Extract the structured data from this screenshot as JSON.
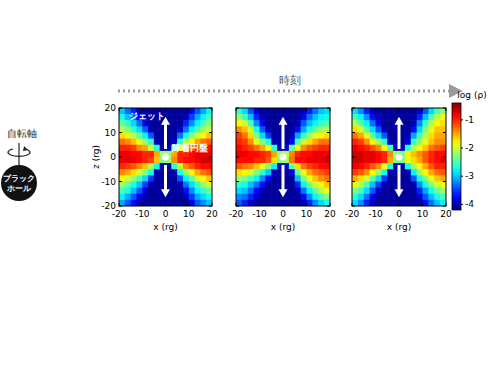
{
  "header": {
    "time_label": "時刻",
    "spin_axis": "自転軸",
    "black_hole": [
      "ブラック",
      "ホール"
    ]
  },
  "colorbar": {
    "label": "log (ρ)",
    "range": [
      -4.2,
      -0.4
    ],
    "ticks": [
      -1,
      -2,
      -3,
      -4
    ]
  },
  "chart_data": [
    {
      "type": "heatmap",
      "xlabel": "x (rg)",
      "ylabel": "z (rg)",
      "xlim": [
        -20,
        20
      ],
      "ylim": [
        -20,
        20
      ],
      "xticks": [
        -20,
        -10,
        0,
        10,
        20
      ],
      "yticks": [
        -20,
        -10,
        0,
        10,
        20
      ],
      "annotations": [
        "ジェット",
        "降着円盤"
      ],
      "cells": [
        [
          -3.0,
          -3.3,
          -3.6,
          -4.0,
          -4.1,
          -4.1,
          -4.1,
          -4.1,
          -4.1,
          -4.1,
          -4.1,
          -4.1,
          -3.8,
          -3.4,
          -3.1,
          -2.8
        ],
        [
          -2.7,
          -3.0,
          -3.3,
          -3.7,
          -4.0,
          -4.1,
          -4.1,
          -4.1,
          -4.1,
          -4.1,
          -4.1,
          -4.0,
          -3.5,
          -3.1,
          -2.8,
          -2.5
        ],
        [
          -2.4,
          -2.6,
          -2.9,
          -3.3,
          -3.8,
          -4.1,
          -4.1,
          -4.1,
          -4.1,
          -4.1,
          -4.1,
          -3.6,
          -3.2,
          -2.8,
          -2.5,
          -2.3
        ],
        [
          -2.1,
          -2.3,
          -2.6,
          -2.9,
          -3.4,
          -4.0,
          -4.1,
          -4.1,
          -4.1,
          -4.1,
          -3.9,
          -3.3,
          -2.8,
          -2.5,
          -2.2,
          -2.0
        ],
        [
          -1.7,
          -1.9,
          -2.1,
          -2.4,
          -2.8,
          -3.4,
          -4.1,
          -4.1,
          -4.1,
          -4.1,
          -3.3,
          -2.7,
          -2.3,
          -2.0,
          -1.8,
          -1.6
        ],
        [
          -1.3,
          -1.4,
          -1.6,
          -1.9,
          -2.2,
          -2.6,
          -4.0,
          -4.1,
          -4.1,
          -3.9,
          -2.6,
          -2.1,
          -1.8,
          -1.5,
          -1.3,
          -1.2
        ],
        [
          -1.0,
          -1.0,
          -1.1,
          -1.4,
          -1.5,
          -2.0,
          -2.6,
          -4.0,
          -4.0,
          -2.5,
          -1.9,
          -1.5,
          -1.3,
          -1.1,
          -1.0,
          -0.9
        ],
        [
          -0.8,
          -0.8,
          -0.9,
          -0.9,
          -1.0,
          -1.0,
          -1.5,
          -2.2,
          -2.2,
          -1.5,
          -1.0,
          -1.0,
          -0.9,
          -0.8,
          -0.8,
          -0.8
        ],
        [
          -0.8,
          -0.8,
          -0.8,
          -0.9,
          -1.0,
          -1.1,
          -1.6,
          -2.3,
          -2.2,
          -1.4,
          -1.0,
          -0.9,
          -0.9,
          -0.8,
          -0.7,
          -0.7
        ],
        [
          -1.0,
          -1.1,
          -1.2,
          -1.4,
          -1.6,
          -2.1,
          -2.7,
          -4.0,
          -4.0,
          -2.6,
          -2.0,
          -1.4,
          -1.2,
          -1.0,
          -0.9,
          -0.9
        ],
        [
          -1.4,
          -1.5,
          -1.7,
          -2.0,
          -2.3,
          -2.7,
          -4.0,
          -4.1,
          -4.1,
          -4.0,
          -2.7,
          -2.2,
          -1.8,
          -1.5,
          -1.3,
          -1.2
        ],
        [
          -1.8,
          -2.0,
          -2.2,
          -2.5,
          -2.9,
          -3.5,
          -4.1,
          -4.1,
          -4.1,
          -4.1,
          -3.4,
          -2.8,
          -2.4,
          -2.0,
          -1.8,
          -1.6
        ],
        [
          -2.2,
          -2.4,
          -2.7,
          -3.0,
          -3.5,
          -4.0,
          -4.1,
          -4.1,
          -4.1,
          -4.1,
          -4.0,
          -3.3,
          -2.9,
          -2.5,
          -2.2,
          -2.0
        ],
        [
          -2.5,
          -2.7,
          -3.0,
          -3.4,
          -3.9,
          -4.1,
          -4.1,
          -4.1,
          -4.1,
          -4.1,
          -4.1,
          -3.7,
          -3.2,
          -2.8,
          -2.6,
          -2.4
        ],
        [
          -2.8,
          -3.1,
          -3.4,
          -3.8,
          -4.0,
          -4.1,
          -4.1,
          -4.1,
          -4.1,
          -4.1,
          -4.1,
          -4.0,
          -3.5,
          -3.1,
          -2.9,
          -2.7
        ],
        [
          -3.1,
          -3.4,
          -3.7,
          -4.0,
          -4.1,
          -4.1,
          -4.1,
          -4.1,
          -4.1,
          -4.1,
          -4.1,
          -4.1,
          -3.8,
          -3.4,
          -3.2,
          -3.0
        ]
      ]
    },
    {
      "type": "heatmap",
      "xlabel": "x (rg)",
      "xlim": [
        -20,
        20
      ],
      "ylim": [
        -20,
        20
      ],
      "xticks": [
        -20,
        -10,
        0,
        10,
        20
      ],
      "yticks": [
        -20,
        -10,
        0,
        10,
        20
      ],
      "tick_labels": "x",
      "cells": [
        [
          -2.6,
          -2.9,
          -3.4,
          -3.9,
          -4.1,
          -4.1,
          -4.1,
          -4.1,
          -4.1,
          -4.1,
          -4.1,
          -4.0,
          -3.6,
          -3.3,
          -3.0,
          -2.9
        ],
        [
          -2.2,
          -2.5,
          -3.0,
          -3.6,
          -4.0,
          -4.1,
          -4.1,
          -4.1,
          -4.1,
          -4.1,
          -4.1,
          -3.8,
          -3.3,
          -3.0,
          -2.8,
          -2.7
        ],
        [
          -1.8,
          -2.0,
          -2.5,
          -3.2,
          -3.8,
          -4.1,
          -4.1,
          -4.1,
          -4.1,
          -4.1,
          -4.0,
          -3.4,
          -3.0,
          -2.8,
          -2.6,
          -2.5
        ],
        [
          -1.4,
          -1.6,
          -2.0,
          -2.7,
          -3.4,
          -4.0,
          -4.1,
          -4.1,
          -4.1,
          -4.1,
          -3.7,
          -3.1,
          -2.7,
          -2.4,
          -2.2,
          -2.1
        ],
        [
          -1.1,
          -1.3,
          -1.7,
          -2.3,
          -2.9,
          -3.5,
          -4.1,
          -4.1,
          -4.1,
          -4.0,
          -3.1,
          -2.6,
          -2.2,
          -1.9,
          -1.8,
          -1.7
        ],
        [
          -1.0,
          -1.1,
          -1.4,
          -1.9,
          -2.3,
          -2.7,
          -4.0,
          -4.1,
          -4.1,
          -3.7,
          -2.5,
          -2.0,
          -1.7,
          -1.5,
          -1.3,
          -1.3
        ],
        [
          -0.9,
          -1.0,
          -1.1,
          -1.3,
          -1.5,
          -1.9,
          -2.6,
          -4.0,
          -3.9,
          -2.4,
          -1.8,
          -1.4,
          -1.2,
          -1.1,
          -1.0,
          -1.0
        ],
        [
          -0.8,
          -0.8,
          -0.9,
          -0.9,
          -1.0,
          -1.1,
          -1.5,
          -2.2,
          -2.1,
          -1.4,
          -1.0,
          -0.9,
          -0.9,
          -0.8,
          -0.8,
          -0.8
        ],
        [
          -0.9,
          -0.9,
          -0.9,
          -1.0,
          -1.0,
          -1.2,
          -1.7,
          -2.3,
          -2.2,
          -1.3,
          -0.9,
          -0.9,
          -0.8,
          -0.8,
          -0.8,
          -0.7
        ],
        [
          -1.2,
          -1.3,
          -1.4,
          -1.6,
          -1.9,
          -2.3,
          -2.8,
          -4.0,
          -3.9,
          -2.4,
          -1.7,
          -1.3,
          -1.1,
          -1.0,
          -0.9,
          -0.9
        ],
        [
          -1.7,
          -1.8,
          -2.0,
          -2.3,
          -2.6,
          -3.0,
          -4.0,
          -4.1,
          -4.1,
          -3.8,
          -2.4,
          -1.9,
          -1.5,
          -1.3,
          -1.2,
          -1.1
        ],
        [
          -2.2,
          -2.3,
          -2.5,
          -2.8,
          -3.2,
          -3.7,
          -4.1,
          -4.1,
          -4.1,
          -4.1,
          -3.0,
          -2.3,
          -1.9,
          -1.6,
          -1.4,
          -1.3
        ],
        [
          -2.6,
          -2.7,
          -3.0,
          -3.3,
          -3.7,
          -4.1,
          -4.1,
          -4.1,
          -4.1,
          -4.1,
          -3.6,
          -2.8,
          -2.3,
          -2.0,
          -1.8,
          -1.6
        ],
        [
          -2.9,
          -3.0,
          -3.3,
          -3.7,
          -4.0,
          -4.1,
          -4.1,
          -4.1,
          -4.1,
          -4.1,
          -4.0,
          -3.3,
          -2.8,
          -2.4,
          -2.1,
          -1.9
        ],
        [
          -3.2,
          -3.3,
          -3.6,
          -3.9,
          -4.1,
          -4.1,
          -4.1,
          -4.1,
          -4.1,
          -4.1,
          -4.1,
          -3.7,
          -3.2,
          -2.8,
          -2.5,
          -2.3
        ],
        [
          -3.4,
          -3.6,
          -3.9,
          -4.1,
          -4.1,
          -4.1,
          -4.1,
          -4.1,
          -4.1,
          -4.1,
          -4.1,
          -4.0,
          -3.6,
          -3.2,
          -2.9,
          -2.7
        ]
      ]
    },
    {
      "type": "heatmap",
      "xlabel": "x (rg)",
      "xlim": [
        -20,
        20
      ],
      "ylim": [
        -20,
        20
      ],
      "xticks": [
        -20,
        -10,
        0,
        10,
        20
      ],
      "yticks": [
        -20,
        -10,
        0,
        10,
        20
      ],
      "tick_labels": "x",
      "cells": [
        [
          -2.9,
          -3.2,
          -3.6,
          -4.0,
          -4.1,
          -4.1,
          -4.1,
          -4.1,
          -4.1,
          -4.1,
          -4.1,
          -3.9,
          -3.4,
          -2.9,
          -2.5,
          -2.3
        ],
        [
          -2.5,
          -2.8,
          -3.2,
          -3.7,
          -4.0,
          -4.1,
          -4.1,
          -4.1,
          -4.1,
          -4.1,
          -4.1,
          -3.6,
          -3.0,
          -2.5,
          -2.1,
          -1.9
        ],
        [
          -2.1,
          -2.4,
          -2.8,
          -3.3,
          -3.8,
          -4.1,
          -4.1,
          -4.1,
          -4.1,
          -4.1,
          -4.0,
          -3.2,
          -2.6,
          -2.1,
          -1.8,
          -1.7
        ],
        [
          -1.7,
          -2.0,
          -2.4,
          -2.9,
          -3.4,
          -4.0,
          -4.1,
          -4.1,
          -4.1,
          -4.1,
          -3.7,
          -2.9,
          -2.3,
          -1.9,
          -1.6,
          -1.6
        ],
        [
          -1.3,
          -1.5,
          -1.9,
          -2.4,
          -2.9,
          -3.4,
          -4.1,
          -4.1,
          -4.1,
          -4.0,
          -3.1,
          -2.5,
          -2.1,
          -1.7,
          -1.5,
          -1.5
        ],
        [
          -1.0,
          -1.1,
          -1.4,
          -1.8,
          -2.2,
          -2.6,
          -4.0,
          -4.1,
          -4.1,
          -3.8,
          -2.6,
          -2.2,
          -1.9,
          -1.6,
          -1.4,
          -1.4
        ],
        [
          -0.8,
          -0.9,
          -1.0,
          -1.2,
          -1.4,
          -1.8,
          -2.5,
          -4.0,
          -4.0,
          -2.6,
          -2.1,
          -1.8,
          -1.6,
          -1.3,
          -1.2,
          -1.1
        ],
        [
          -0.7,
          -0.7,
          -0.8,
          -0.8,
          -0.9,
          -1.0,
          -1.4,
          -2.2,
          -2.3,
          -1.8,
          -1.6,
          -1.4,
          -1.2,
          -1.0,
          -0.9,
          -0.9
        ],
        [
          -0.7,
          -0.7,
          -0.8,
          -0.8,
          -0.9,
          -1.0,
          -1.5,
          -2.3,
          -2.3,
          -1.9,
          -1.7,
          -1.5,
          -1.2,
          -1.0,
          -0.9,
          -0.8
        ],
        [
          -0.8,
          -0.9,
          -1.0,
          -1.2,
          -1.4,
          -1.9,
          -2.6,
          -4.0,
          -4.0,
          -2.7,
          -2.2,
          -1.8,
          -1.5,
          -1.2,
          -1.0,
          -1.0
        ],
        [
          -1.1,
          -1.2,
          -1.4,
          -1.8,
          -2.2,
          -2.7,
          -4.0,
          -4.1,
          -4.1,
          -4.0,
          -2.8,
          -2.2,
          -1.8,
          -1.5,
          -1.3,
          -1.2
        ],
        [
          -1.5,
          -1.7,
          -2.0,
          -2.4,
          -2.9,
          -3.5,
          -4.1,
          -4.1,
          -4.1,
          -4.1,
          -3.4,
          -2.7,
          -2.3,
          -1.9,
          -1.6,
          -1.5
        ],
        [
          -1.9,
          -2.1,
          -2.5,
          -3.0,
          -3.5,
          -4.0,
          -4.1,
          -4.1,
          -4.1,
          -4.1,
          -4.0,
          -3.2,
          -2.7,
          -2.3,
          -2.0,
          -1.9
        ],
        [
          -2.3,
          -2.5,
          -2.9,
          -3.4,
          -3.9,
          -4.1,
          -4.1,
          -4.1,
          -4.1,
          -4.1,
          -4.1,
          -3.6,
          -3.1,
          -2.7,
          -2.4,
          -2.2
        ],
        [
          -2.6,
          -2.9,
          -3.3,
          -3.8,
          -4.1,
          -4.1,
          -4.1,
          -4.1,
          -4.1,
          -4.1,
          -4.1,
          -3.9,
          -3.4,
          -3.0,
          -2.7,
          -2.5
        ],
        [
          -2.9,
          -3.2,
          -3.6,
          -4.0,
          -4.1,
          -4.1,
          -4.1,
          -4.1,
          -4.1,
          -4.1,
          -4.1,
          -4.1,
          -3.7,
          -3.3,
          -3.0,
          -2.8
        ]
      ]
    }
  ]
}
